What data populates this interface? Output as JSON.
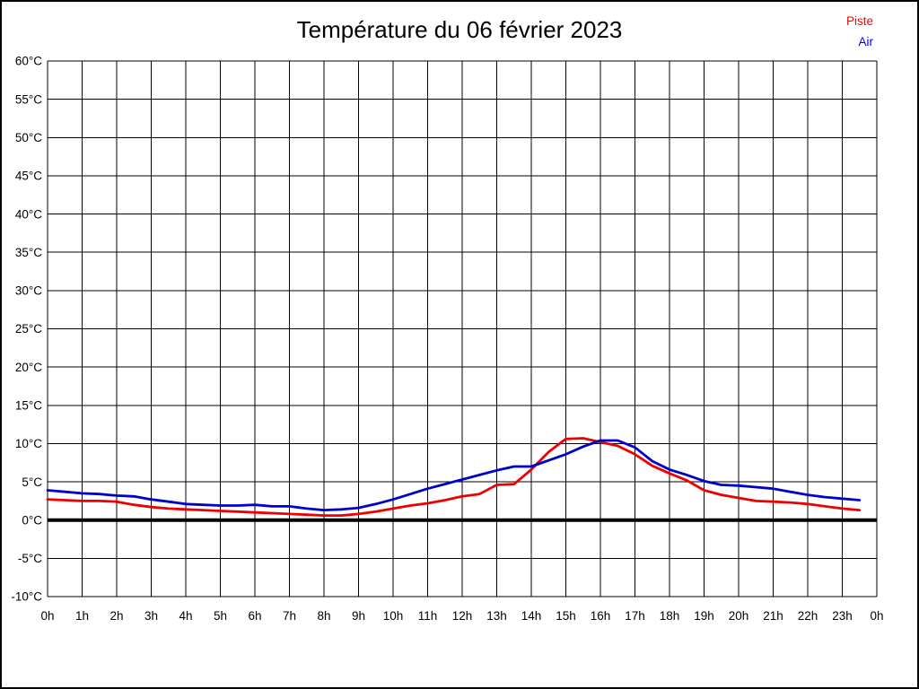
{
  "header": {
    "title": "Température du 06 février 2023"
  },
  "legend": {
    "items": [
      {
        "label": "Piste",
        "color": "#ff0000"
      },
      {
        "label": "Air",
        "color": "#0000ee"
      }
    ]
  },
  "chart_data": {
    "type": "line",
    "title": "Température du 06 février 2023",
    "xlabel": "",
    "ylabel": "",
    "x_range": [
      0,
      24
    ],
    "y_range": [
      -10,
      60
    ],
    "grid": true,
    "legend_position": "top-right",
    "x_step_hours": 0.5,
    "x_ticks": [
      "0h",
      "1h",
      "2h",
      "3h",
      "4h",
      "5h",
      "6h",
      "7h",
      "8h",
      "9h",
      "10h",
      "11h",
      "12h",
      "13h",
      "14h",
      "15h",
      "16h",
      "17h",
      "18h",
      "19h",
      "20h",
      "21h",
      "22h",
      "23h",
      "0h"
    ],
    "y_ticks": {
      "labels": [
        "60°C",
        "55°C",
        "50°C",
        "45°C",
        "40°C",
        "35°C",
        "30°C",
        "25°C",
        "20°C",
        "15°C",
        "10°C",
        "5°C",
        "0°C",
        "-5°C",
        "-10°C"
      ],
      "values": [
        60,
        55,
        50,
        45,
        40,
        35,
        30,
        25,
        20,
        15,
        10,
        5,
        0,
        -5,
        -10
      ]
    },
    "zero_line": {
      "value": 0,
      "color": "#000000",
      "width": 4
    },
    "series": [
      {
        "name": "Piste",
        "color": "#ee0000",
        "values": [
          2.7,
          2.6,
          2.5,
          2.5,
          2.4,
          2.0,
          1.7,
          1.5,
          1.4,
          1.3,
          1.2,
          1.1,
          1.0,
          0.9,
          0.8,
          0.7,
          0.6,
          0.6,
          0.8,
          1.1,
          1.5,
          1.9,
          2.2,
          2.6,
          3.1,
          3.4,
          4.6,
          4.7,
          6.6,
          8.9,
          10.6,
          10.7,
          10.2,
          9.7,
          8.6,
          7.1,
          6.1,
          5.2,
          3.9,
          3.3,
          2.9,
          2.5,
          2.4,
          2.3,
          2.1,
          1.8,
          1.5,
          1.3
        ]
      },
      {
        "name": "Air",
        "color": "#0000cc",
        "values": [
          3.9,
          3.7,
          3.5,
          3.4,
          3.2,
          3.1,
          2.7,
          2.4,
          2.1,
          2.0,
          1.9,
          1.9,
          2.0,
          1.8,
          1.8,
          1.5,
          1.3,
          1.4,
          1.6,
          2.1,
          2.7,
          3.4,
          4.1,
          4.7,
          5.3,
          5.9,
          6.5,
          7.0,
          7.0,
          7.8,
          8.6,
          9.6,
          10.4,
          10.4,
          9.5,
          7.7,
          6.6,
          5.9,
          5.1,
          4.6,
          4.5,
          4.3,
          4.1,
          3.7,
          3.3,
          3.0,
          2.8,
          2.6
        ]
      }
    ]
  }
}
